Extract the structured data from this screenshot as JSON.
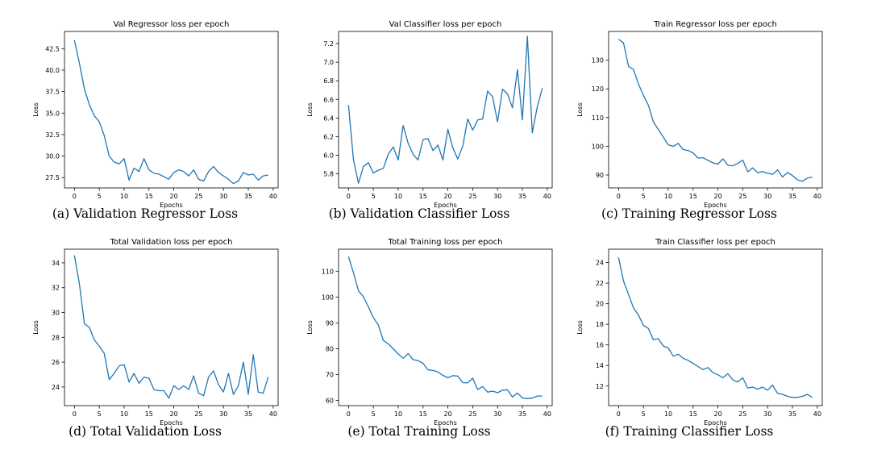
{
  "line_color": "#1f77b4",
  "chart_data": [
    {
      "type": "line",
      "title": "Val Regressor loss per epoch",
      "xlabel": "Epochs",
      "ylabel": "Loss",
      "caption": "(a) Validation Regressor Loss",
      "xlim": [
        -2,
        41
      ],
      "ylim": [
        26.3,
        44.5
      ],
      "xticks": [
        0,
        5,
        10,
        15,
        20,
        25,
        30,
        35,
        40
      ],
      "yticks": [
        27.5,
        30.0,
        32.5,
        35.0,
        37.5,
        40.0,
        42.5
      ],
      "ytick_labels": [
        "27.5",
        "30.0",
        "32.5",
        "35.0",
        "37.5",
        "40.0",
        "42.5"
      ],
      "grid": false,
      "x": [
        0,
        1,
        2,
        3,
        4,
        5,
        6,
        7,
        8,
        9,
        10,
        11,
        12,
        13,
        14,
        15,
        16,
        17,
        18,
        19,
        20,
        21,
        22,
        23,
        24,
        25,
        26,
        27,
        28,
        29,
        30,
        31,
        32,
        33,
        34,
        35,
        36,
        37,
        38,
        39
      ],
      "y": [
        43.5,
        40.8,
        37.8,
        36.0,
        34.7,
        34.0,
        32.4,
        30.0,
        29.3,
        29.1,
        29.7,
        27.2,
        28.6,
        28.2,
        29.7,
        28.4,
        28.0,
        27.9,
        27.6,
        27.3,
        28.1,
        28.4,
        28.2,
        27.7,
        28.4,
        27.3,
        27.1,
        28.2,
        28.8,
        28.1,
        27.7,
        27.3,
        26.8,
        27.1,
        28.1,
        27.8,
        27.9,
        27.2,
        27.7,
        27.8
      ]
    },
    {
      "type": "line",
      "title": "Val Classifier loss per epoch",
      "xlabel": "Epochs",
      "ylabel": "Loss",
      "caption": "(b) Validation Classifier Loss",
      "xlim": [
        -2,
        41
      ],
      "ylim": [
        5.65,
        7.33
      ],
      "xticks": [
        0,
        5,
        10,
        15,
        20,
        25,
        30,
        35,
        40
      ],
      "yticks": [
        5.8,
        6.0,
        6.2,
        6.4,
        6.6,
        6.8,
        7.0,
        7.2
      ],
      "ytick_labels": [
        "5.8",
        "6.0",
        "6.2",
        "6.4",
        "6.6",
        "6.8",
        "7.0",
        "7.2"
      ],
      "grid": false,
      "x": [
        0,
        1,
        2,
        3,
        4,
        5,
        6,
        7,
        8,
        9,
        10,
        11,
        12,
        13,
        14,
        15,
        16,
        17,
        18,
        19,
        20,
        21,
        22,
        23,
        24,
        25,
        26,
        27,
        28,
        29,
        30,
        31,
        32,
        33,
        34,
        35,
        36,
        37,
        38,
        39
      ],
      "y": [
        6.54,
        5.95,
        5.7,
        5.88,
        5.92,
        5.81,
        5.84,
        5.86,
        6.01,
        6.09,
        5.95,
        6.32,
        6.13,
        6.01,
        5.95,
        6.17,
        6.18,
        6.05,
        6.11,
        5.95,
        6.28,
        6.08,
        5.96,
        6.1,
        6.39,
        6.27,
        6.38,
        6.39,
        6.69,
        6.63,
        6.36,
        6.71,
        6.66,
        6.51,
        6.92,
        6.38,
        7.28,
        6.24,
        6.52,
        6.72
      ]
    },
    {
      "type": "line",
      "title": "Train Regressor loss per epoch",
      "xlabel": "Epochs",
      "ylabel": "Loss",
      "caption": "(c) Training Regressor Loss",
      "xlim": [
        -2,
        41
      ],
      "ylim": [
        85.5,
        140
      ],
      "xticks": [
        0,
        5,
        10,
        15,
        20,
        25,
        30,
        35,
        40
      ],
      "yticks": [
        90,
        100,
        110,
        120,
        130
      ],
      "ytick_labels": [
        "90",
        "100",
        "110",
        "120",
        "130"
      ],
      "grid": false,
      "x": [
        0,
        1,
        2,
        3,
        4,
        5,
        6,
        7,
        8,
        9,
        10,
        11,
        12,
        13,
        14,
        15,
        16,
        17,
        18,
        19,
        20,
        21,
        22,
        23,
        24,
        25,
        26,
        27,
        28,
        29,
        30,
        31,
        32,
        33,
        34,
        35,
        36,
        37,
        38,
        39
      ],
      "y": [
        137.3,
        136.0,
        127.8,
        126.8,
        121.7,
        117.8,
        114.3,
        108.5,
        105.9,
        103.2,
        100.5,
        100.0,
        101.0,
        98.9,
        98.5,
        97.7,
        95.9,
        96.0,
        95.1,
        94.2,
        93.8,
        95.6,
        93.4,
        93.2,
        94.0,
        95.2,
        91.1,
        92.5,
        90.8,
        91.2,
        90.6,
        90.2,
        91.8,
        89.3,
        90.9,
        89.8,
        88.3,
        87.8,
        88.9,
        89.3
      ]
    },
    {
      "type": "line",
      "title": "Total Validation loss per epoch",
      "xlabel": "Epochs",
      "ylabel": "Loss",
      "caption": "(d) Total Validation Loss",
      "xlim": [
        -2,
        41
      ],
      "ylim": [
        22.5,
        35.1
      ],
      "xticks": [
        0,
        5,
        10,
        15,
        20,
        25,
        30,
        35,
        40
      ],
      "yticks": [
        24,
        26,
        28,
        30,
        32,
        34
      ],
      "ytick_labels": [
        "24",
        "26",
        "28",
        "30",
        "32",
        "34"
      ],
      "grid": false,
      "x": [
        0,
        1,
        2,
        3,
        4,
        5,
        6,
        7,
        8,
        9,
        10,
        11,
        12,
        13,
        14,
        15,
        16,
        17,
        18,
        19,
        20,
        21,
        22,
        23,
        24,
        25,
        26,
        27,
        28,
        29,
        30,
        31,
        32,
        33,
        34,
        35,
        36,
        37,
        38,
        39
      ],
      "y": [
        34.6,
        32.3,
        29.1,
        28.8,
        27.8,
        27.3,
        26.7,
        24.6,
        25.1,
        25.7,
        25.8,
        24.4,
        25.1,
        24.3,
        24.8,
        24.7,
        23.8,
        23.7,
        23.7,
        23.1,
        24.1,
        23.8,
        24.1,
        23.8,
        24.9,
        23.5,
        23.3,
        24.8,
        25.3,
        24.2,
        23.6,
        25.1,
        23.4,
        24.1,
        26.0,
        23.4,
        26.6,
        23.6,
        23.5,
        24.8
      ]
    },
    {
      "type": "line",
      "title": "Total Training loss per epoch",
      "xlabel": "Epochs",
      "ylabel": "Loss",
      "caption": "(e) Total Training Loss",
      "xlim": [
        -2,
        41
      ],
      "ylim": [
        58,
        118.5
      ],
      "xticks": [
        0,
        5,
        10,
        15,
        20,
        25,
        30,
        35,
        40
      ],
      "yticks": [
        60,
        70,
        80,
        90,
        100,
        110
      ],
      "ytick_labels": [
        "60",
        "70",
        "80",
        "90",
        "100",
        "110"
      ],
      "grid": false,
      "x": [
        0,
        1,
        2,
        3,
        4,
        5,
        6,
        7,
        8,
        9,
        10,
        11,
        12,
        13,
        14,
        15,
        16,
        17,
        18,
        19,
        20,
        21,
        22,
        23,
        24,
        25,
        26,
        27,
        28,
        29,
        30,
        31,
        32,
        33,
        34,
        35,
        36,
        37,
        38,
        39
      ],
      "y": [
        115.6,
        109.4,
        102.4,
        100.1,
        96.2,
        92.1,
        89.2,
        83.2,
        81.9,
        80.0,
        78.0,
        76.3,
        78.1,
        75.8,
        75.4,
        74.4,
        71.8,
        71.6,
        71.0,
        69.7,
        68.8,
        69.6,
        69.4,
        66.9,
        66.8,
        68.6,
        64.2,
        65.4,
        63.2,
        63.6,
        63.0,
        64.0,
        64.1,
        61.3,
        62.9,
        61.0,
        60.7,
        60.9,
        61.7,
        61.7
      ]
    },
    {
      "type": "line",
      "title": "Train Classifier loss per epoch",
      "xlabel": "Epochs",
      "ylabel": "Loss",
      "caption": "(f) Training Classifier Loss",
      "xlim": [
        -2,
        41
      ],
      "ylim": [
        10.1,
        25.3
      ],
      "xticks": [
        0,
        5,
        10,
        15,
        20,
        25,
        30,
        35,
        40
      ],
      "yticks": [
        12,
        14,
        16,
        18,
        20,
        22,
        24
      ],
      "ytick_labels": [
        "12",
        "14",
        "16",
        "18",
        "20",
        "22",
        "24"
      ],
      "grid": false,
      "x": [
        0,
        1,
        2,
        3,
        4,
        5,
        6,
        7,
        8,
        9,
        10,
        11,
        12,
        13,
        14,
        15,
        16,
        17,
        18,
        19,
        20,
        21,
        22,
        23,
        24,
        25,
        26,
        27,
        28,
        29,
        30,
        31,
        32,
        33,
        34,
        35,
        36,
        37,
        38,
        39
      ],
      "y": [
        24.5,
        22.2,
        20.9,
        19.6,
        18.9,
        17.9,
        17.6,
        16.5,
        16.6,
        15.9,
        15.7,
        14.9,
        15.1,
        14.7,
        14.5,
        14.2,
        13.9,
        13.6,
        13.8,
        13.3,
        13.1,
        12.8,
        13.2,
        12.6,
        12.4,
        12.8,
        11.8,
        11.9,
        11.7,
        11.9,
        11.6,
        12.1,
        11.3,
        11.2,
        11.0,
        10.9,
        10.9,
        11.0,
        11.2,
        10.9
      ]
    }
  ]
}
